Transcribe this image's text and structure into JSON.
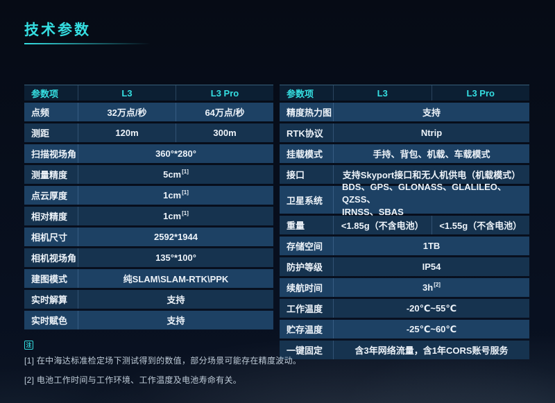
{
  "page": {
    "title": "技术参数"
  },
  "colors": {
    "accent": "#35dfe2",
    "background": "#070c16",
    "header_bg": "#0c1f33",
    "row_light": "#1d4164",
    "row_dark": "#16334f",
    "separator": "rgba(130,175,220,0.26)",
    "cell_text": "#edf3f9",
    "footnote_text": "#bfccd8"
  },
  "left_table": {
    "headers": [
      "参数项",
      "L3",
      "L3 Pro"
    ],
    "rows": [
      {
        "label": "点频",
        "cells": [
          {
            "text": "32万点/秒"
          },
          {
            "text": "64万点/秒"
          }
        ]
      },
      {
        "label": "测距",
        "cells": [
          {
            "text": "120m"
          },
          {
            "text": "300m"
          }
        ]
      },
      {
        "label": "扫描视场角",
        "cells": [
          {
            "text": "360°*280°"
          }
        ]
      },
      {
        "label": "测量精度",
        "cells": [
          {
            "text": "5cm",
            "sup": "[1]"
          }
        ]
      },
      {
        "label": "点云厚度",
        "cells": [
          {
            "text": "1cm",
            "sup": "[1]"
          }
        ]
      },
      {
        "label": "相对精度",
        "cells": [
          {
            "text": "1cm",
            "sup": "[1]"
          }
        ]
      },
      {
        "label": "相机尺寸",
        "cells": [
          {
            "text": "2592*1944"
          }
        ]
      },
      {
        "label": "相机视场角",
        "cells": [
          {
            "text": "135°*100°"
          }
        ]
      },
      {
        "label": "建图模式",
        "cells": [
          {
            "text": "纯SLAM\\SLAM-RTK\\PPK"
          }
        ]
      },
      {
        "label": "实时解算",
        "cells": [
          {
            "text": "支持"
          }
        ]
      },
      {
        "label": "实时赋色",
        "cells": [
          {
            "text": "支持"
          }
        ]
      }
    ]
  },
  "right_table": {
    "headers": [
      "参数项",
      "L3",
      "L3 Pro"
    ],
    "rows": [
      {
        "label": "精度热力图",
        "cells": [
          {
            "text": "支持"
          }
        ]
      },
      {
        "label": "RTK协议",
        "cells": [
          {
            "text": "Ntrip"
          }
        ]
      },
      {
        "label": "挂载模式",
        "cells": [
          {
            "text": "手持、背包、机载、车载模式"
          }
        ]
      },
      {
        "label": "接口",
        "cells": [
          {
            "text": "支持Skyport接口和无人机供电（机载模式）"
          }
        ]
      },
      {
        "label": "卫星系统",
        "tall": true,
        "cells": [
          {
            "text": "BDS、GPS、GLONASS、GLALILEO、QZSS、\nIRNSS、SBAS",
            "align": "left"
          }
        ]
      },
      {
        "label": "重量",
        "cells": [
          {
            "text": "<1.85g（不含电池）"
          },
          {
            "text": "<1.55g（不含电池）"
          }
        ]
      },
      {
        "label": "存储空间",
        "cells": [
          {
            "text": "1TB"
          }
        ]
      },
      {
        "label": "防护等级",
        "cells": [
          {
            "text": "IP54"
          }
        ]
      },
      {
        "label": "续航时间",
        "cells": [
          {
            "text": "3h",
            "sup": "[2]"
          }
        ]
      },
      {
        "label": "工作温度",
        "cells": [
          {
            "text": "-20℃~55℃"
          }
        ]
      },
      {
        "label": "贮存温度",
        "cells": [
          {
            "text": "-25℃~60℃"
          }
        ]
      },
      {
        "label": "一键固定",
        "cells": [
          {
            "text": "含3年网络流量，含1年CORS账号服务"
          }
        ]
      }
    ]
  },
  "footnotes": {
    "icon": "注",
    "lines": [
      "[1] 在中海达标准检定场下测试得到的数值，部分场景可能存在精度波动。",
      "[2] 电池工作时间与工作环境、工作温度及电池寿命有关。"
    ]
  }
}
